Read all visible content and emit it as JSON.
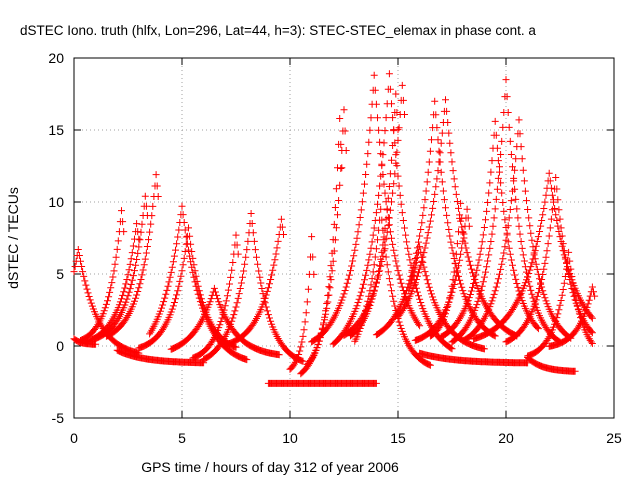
{
  "chart_data": {
    "type": "scatter",
    "title": "dSTEC Iono. truth (hlfx, Lon=296, Lat=44, h=3): STEC-STEC_elemax in phase cont. a",
    "xlabel": "GPS time / hours of day 312 of year 2006",
    "ylabel": "dSTEC  / TECUs",
    "xlim": [
      0,
      25
    ],
    "ylim": [
      -5,
      20
    ],
    "x_ticks": [
      0,
      5,
      10,
      15,
      20,
      25
    ],
    "y_ticks": [
      -5,
      0,
      5,
      10,
      15,
      20
    ],
    "x_tick_labels": [
      "0",
      "5",
      "10",
      "15",
      "20",
      "25"
    ],
    "y_tick_labels": [
      "-5",
      "0",
      "5",
      "10",
      "15",
      "20"
    ],
    "grid": true,
    "marker": "+",
    "series_color": "#ff0000",
    "passes": [
      {
        "start": 0.0,
        "peak_t": 0.2,
        "end": 3.0,
        "peak": 6.7,
        "min": -0.8
      },
      {
        "start": 0.0,
        "peak_t": 0.0,
        "end": 1.0,
        "peak": 0.5,
        "min": 0.1
      },
      {
        "start": 0.3,
        "peak_t": 2.2,
        "end": 2.3,
        "peak": 9.4,
        "min": 0.0
      },
      {
        "start": 0.5,
        "peak_t": 2.9,
        "end": 3.0,
        "peak": 8.5,
        "min": -0.1
      },
      {
        "start": 1.0,
        "peak_t": 3.3,
        "end": 3.4,
        "peak": 10.4,
        "min": 0.1
      },
      {
        "start": 1.5,
        "peak_t": 3.8,
        "end": 3.9,
        "peak": 11.9,
        "min": 0.2
      },
      {
        "start": 2.0,
        "peak_t": 2.0,
        "end": 6.0,
        "peak": -0.3,
        "min": -1.2
      },
      {
        "start": 3.5,
        "peak_t": 5.0,
        "end": 8.0,
        "peak": 9.7,
        "min": -1.4
      },
      {
        "start": 3.0,
        "peak_t": 5.3,
        "end": 7.5,
        "peak": 8.2,
        "min": -0.5
      },
      {
        "start": 5.5,
        "peak_t": 7.5,
        "end": 7.6,
        "peak": 7.7,
        "min": -1.2
      },
      {
        "start": 4.5,
        "peak_t": 6.5,
        "end": 9.5,
        "peak": 4.0,
        "min": -0.8
      },
      {
        "start": 6.0,
        "peak_t": 8.2,
        "end": 10.6,
        "peak": 9.2,
        "min": -1.5
      },
      {
        "start": 7.0,
        "peak_t": 9.6,
        "end": 9.7,
        "peak": 8.8,
        "min": -0.3
      },
      {
        "start": 10.0,
        "peak_t": 11.0,
        "end": 11.1,
        "peak": 7.6,
        "min": -2.0
      },
      {
        "start": 9.0,
        "peak_t": 10.7,
        "end": 14.0,
        "peak": -2.6,
        "min": -2.6
      },
      {
        "start": 10.5,
        "peak_t": 12.5,
        "end": 12.6,
        "peak": 16.4,
        "min": -2.7
      },
      {
        "start": 10.8,
        "peak_t": 12.3,
        "end": 12.4,
        "peak": 15.8,
        "min": -2.0
      },
      {
        "start": 11.0,
        "peak_t": 13.9,
        "end": 16.0,
        "peak": 18.8,
        "min": -0.5
      },
      {
        "start": 12.0,
        "peak_t": 14.6,
        "end": 17.5,
        "peak": 18.9,
        "min": -1.0
      },
      {
        "start": 12.5,
        "peak_t": 15.2,
        "end": 15.3,
        "peak": 18.1,
        "min": 0.0
      },
      {
        "start": 12.8,
        "peak_t": 14.9,
        "end": 15.0,
        "peak": 17.5,
        "min": 0.0
      },
      {
        "start": 13.0,
        "peak_t": 14.2,
        "end": 16.5,
        "peak": 9.5,
        "min": -1.8
      },
      {
        "start": 14.0,
        "peak_t": 16.7,
        "end": 19.5,
        "peak": 17.0,
        "min": 0.0
      },
      {
        "start": 15.0,
        "peak_t": 17.2,
        "end": 20.5,
        "peak": 17.1,
        "min": 0.0
      },
      {
        "start": 15.5,
        "peak_t": 16.0,
        "end": 19.0,
        "peak": 6.9,
        "min": -0.5
      },
      {
        "start": 15.8,
        "peak_t": 18.2,
        "end": 18.3,
        "peak": 9.5,
        "min": 0.0
      },
      {
        "start": 16.5,
        "peak_t": 17.9,
        "end": 18.0,
        "peak": 9.9,
        "min": 0.3
      },
      {
        "start": 17.0,
        "peak_t": 19.5,
        "end": 21.5,
        "peak": 15.6,
        "min": 0.0
      },
      {
        "start": 17.5,
        "peak_t": 20.0,
        "end": 22.5,
        "peak": 18.5,
        "min": -0.5
      },
      {
        "start": 18.0,
        "peak_t": 20.6,
        "end": 23.0,
        "peak": 15.7,
        "min": -0.3
      },
      {
        "start": 18.5,
        "peak_t": 22.0,
        "end": 24.0,
        "peak": 12.0,
        "min": 0.0
      },
      {
        "start": 20.0,
        "peak_t": 22.3,
        "end": 24.0,
        "peak": 11.7,
        "min": -0.2
      },
      {
        "start": 21.0,
        "peak_t": 22.9,
        "end": 24.0,
        "peak": 6.5,
        "min": -1.0
      },
      {
        "start": 22.0,
        "peak_t": 24.0,
        "end": 24.1,
        "peak": 4.1,
        "min": -0.2
      },
      {
        "start": 16.0,
        "peak_t": 16.0,
        "end": 21.0,
        "peak": -0.5,
        "min": -1.2
      },
      {
        "start": 21.0,
        "peak_t": 21.0,
        "end": 23.2,
        "peak": -0.8,
        "min": -1.8
      }
    ]
  }
}
